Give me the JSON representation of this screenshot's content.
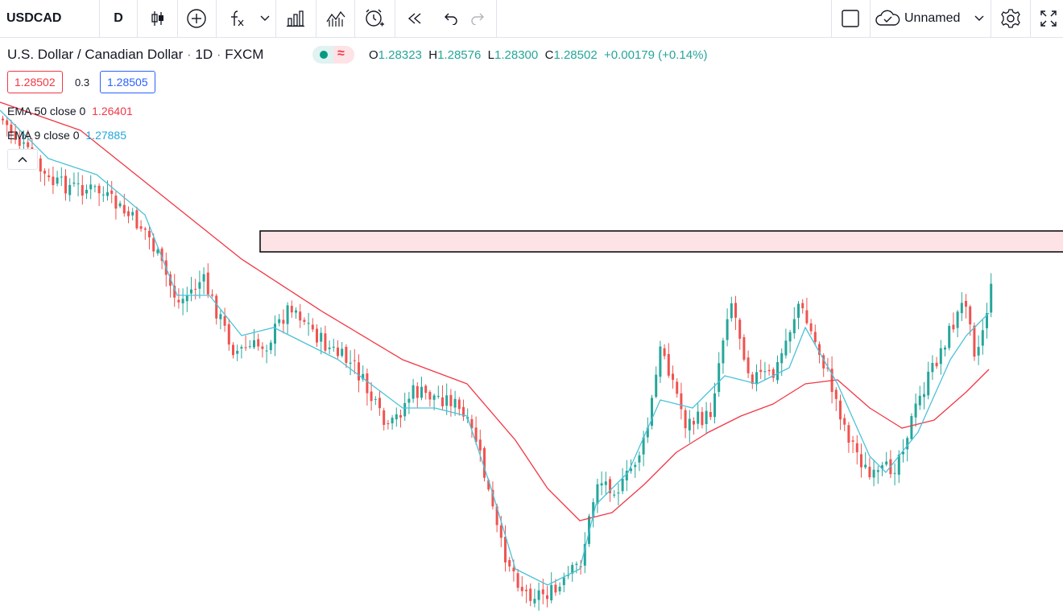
{
  "toolbar": {
    "symbol": "USDCAD",
    "interval": "D",
    "layout_name": "Unnamed",
    "icons": [
      "candles-icon",
      "add-symbol-icon",
      "indicators-icon",
      "chevron-down-icon",
      "templates-icon",
      "alert-icon",
      "replay-icon",
      "undo-icon",
      "redo-icon",
      "square-icon",
      "cloud-icon",
      "settings-icon",
      "fullscreen-icon"
    ]
  },
  "legend": {
    "title": "U.S. Dollar / Canadian Dollar",
    "interval": "1D",
    "source": "FXCM",
    "dot": "·",
    "o_label": "O",
    "o_val": "1.28323",
    "h_label": "H",
    "h_val": "1.28576",
    "l_label": "L",
    "l_val": "1.28300",
    "c_label": "C",
    "c_val": "1.28502",
    "change": "+0.00179 (+0.14%)",
    "sell_price": "1.28502",
    "spread": "0.3",
    "buy_price": "1.28505"
  },
  "indicators": [
    {
      "label": "EMA 50 close 0",
      "value": "1.26401",
      "color": "#f23645"
    },
    {
      "label": "EMA 9 close 0",
      "value": "1.27885",
      "color": "#22a8d8"
    }
  ],
  "colors": {
    "up": "#26a69a",
    "down": "#ef5350",
    "ema50": "#f23645",
    "ema9": "#4cc2d9",
    "zone_fill": "#fde3e5",
    "zone_border": "#000000"
  },
  "chart_data": {
    "type": "candlestick",
    "symbol": "USDCAD",
    "resistance_zone": {
      "from": 1.285,
      "to": 1.2885
    },
    "series_y_pixel_anchor": "price",
    "ema50_waypoints": [
      [
        0,
        80
      ],
      [
        100,
        115
      ],
      [
        200,
        195
      ],
      [
        300,
        275
      ],
      [
        400,
        340
      ],
      [
        500,
        400
      ],
      [
        580,
        430
      ],
      [
        640,
        500
      ],
      [
        680,
        560
      ],
      [
        720,
        600
      ],
      [
        760,
        590
      ],
      [
        800,
        555
      ],
      [
        840,
        515
      ],
      [
        880,
        490
      ],
      [
        920,
        470
      ],
      [
        960,
        455
      ],
      [
        1000,
        430
      ],
      [
        1040,
        425
      ],
      [
        1080,
        460
      ],
      [
        1120,
        485
      ],
      [
        1160,
        475
      ],
      [
        1200,
        440
      ],
      [
        1230,
        410
      ]
    ],
    "ema9_waypoints": [
      [
        0,
        90
      ],
      [
        60,
        150
      ],
      [
        120,
        170
      ],
      [
        180,
        220
      ],
      [
        220,
        320
      ],
      [
        260,
        320
      ],
      [
        300,
        370
      ],
      [
        340,
        360
      ],
      [
        380,
        380
      ],
      [
        420,
        400
      ],
      [
        460,
        430
      ],
      [
        500,
        460
      ],
      [
        540,
        460
      ],
      [
        580,
        470
      ],
      [
        610,
        560
      ],
      [
        640,
        660
      ],
      [
        680,
        680
      ],
      [
        720,
        660
      ],
      [
        740,
        580
      ],
      [
        780,
        540
      ],
      [
        820,
        450
      ],
      [
        860,
        460
      ],
      [
        900,
        420
      ],
      [
        940,
        430
      ],
      [
        980,
        410
      ],
      [
        1000,
        360
      ],
      [
        1040,
        430
      ],
      [
        1080,
        520
      ],
      [
        1100,
        540
      ],
      [
        1140,
        490
      ],
      [
        1180,
        400
      ],
      [
        1200,
        370
      ],
      [
        1230,
        340
      ]
    ],
    "close_waypoints": [
      [
        0,
        100
      ],
      [
        60,
        180
      ],
      [
        120,
        190
      ],
      [
        180,
        240
      ],
      [
        220,
        330
      ],
      [
        250,
        300
      ],
      [
        290,
        390
      ],
      [
        330,
        380
      ],
      [
        360,
        330
      ],
      [
        400,
        380
      ],
      [
        440,
        410
      ],
      [
        480,
        490
      ],
      [
        510,
        440
      ],
      [
        560,
        450
      ],
      [
        590,
        500
      ],
      [
        620,
        630
      ],
      [
        650,
        690
      ],
      [
        690,
        690
      ],
      [
        720,
        650
      ],
      [
        740,
        550
      ],
      [
        770,
        560
      ],
      [
        800,
        500
      ],
      [
        820,
        380
      ],
      [
        850,
        480
      ],
      [
        880,
        470
      ],
      [
        905,
        320
      ],
      [
        930,
        420
      ],
      [
        960,
        420
      ],
      [
        990,
        330
      ],
      [
        1020,
        400
      ],
      [
        1050,
        490
      ],
      [
        1080,
        550
      ],
      [
        1110,
        530
      ],
      [
        1140,
        450
      ],
      [
        1170,
        380
      ],
      [
        1200,
        320
      ],
      [
        1210,
        400
      ],
      [
        1230,
        310
      ]
    ]
  }
}
